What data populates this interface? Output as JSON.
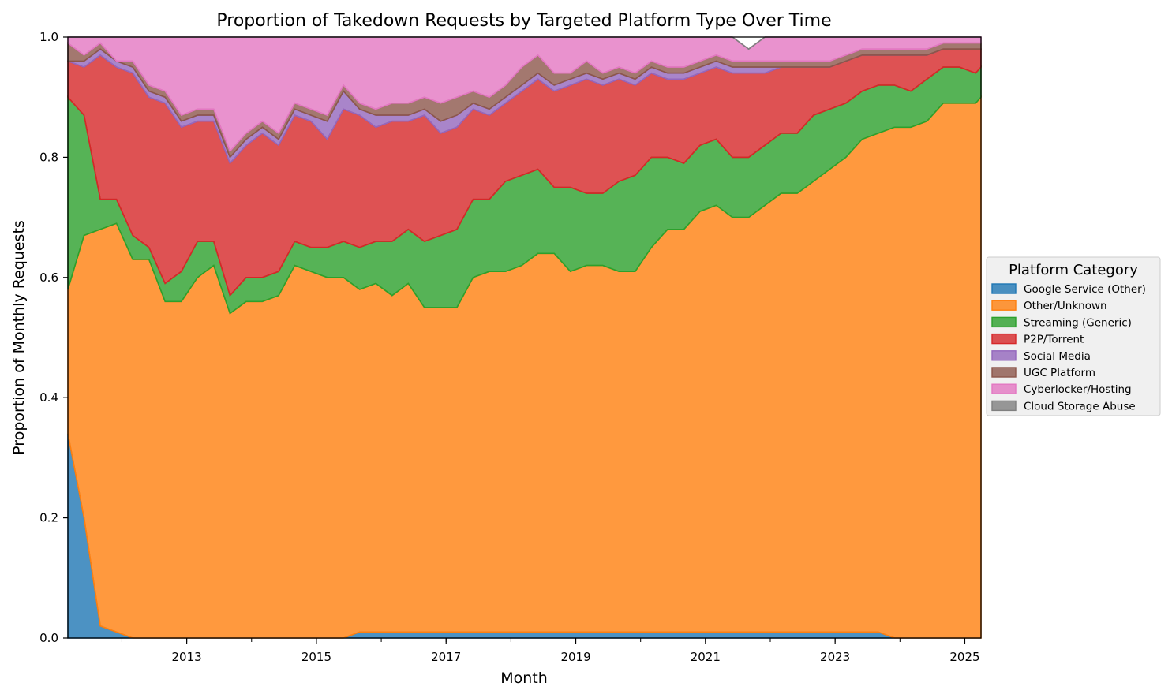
{
  "chart_data": {
    "type": "area",
    "stacked": true,
    "normalized": true,
    "title": "Proportion of Takedown Requests by Targeted Platform Type Over Time",
    "xlabel": "Month",
    "ylabel": "Proportion of Monthly Requests",
    "xlim": [
      "2011-03",
      "2025-04"
    ],
    "ylim": [
      0,
      1
    ],
    "x_ticks": [
      "2013",
      "2015",
      "2017",
      "2019",
      "2021",
      "2023",
      "2025"
    ],
    "y_ticks": [
      "0.0",
      "0.2",
      "0.4",
      "0.6",
      "0.8",
      "1.0"
    ],
    "grid": false,
    "legend": {
      "title": "Platform Category",
      "placement": "center-right, outside plot"
    },
    "x": [
      "2011-03",
      "2011-06",
      "2011-09",
      "2011-12",
      "2012-03",
      "2012-06",
      "2012-09",
      "2012-12",
      "2013-03",
      "2013-06",
      "2013-09",
      "2013-12",
      "2014-03",
      "2014-06",
      "2014-09",
      "2014-12",
      "2015-03",
      "2015-06",
      "2015-09",
      "2015-12",
      "2016-03",
      "2016-06",
      "2016-09",
      "2016-12",
      "2017-03",
      "2017-06",
      "2017-09",
      "2017-12",
      "2018-03",
      "2018-06",
      "2018-09",
      "2018-12",
      "2019-03",
      "2019-06",
      "2019-09",
      "2019-12",
      "2020-03",
      "2020-06",
      "2020-09",
      "2020-12",
      "2021-03",
      "2021-06",
      "2021-09",
      "2021-12",
      "2022-03",
      "2022-06",
      "2022-09",
      "2022-12",
      "2023-03",
      "2023-06",
      "2023-09",
      "2023-12",
      "2024-03",
      "2024-06",
      "2024-09",
      "2024-12",
      "2025-03",
      "2025-04"
    ],
    "series": [
      {
        "name": "Google Service (Other)",
        "color": "#1f77b4",
        "values": [
          0.34,
          0.2,
          0.02,
          0.01,
          0.0,
          0.0,
          0.0,
          0.0,
          0.0,
          0.0,
          0.0,
          0.0,
          0.0,
          0.0,
          0.0,
          0.0,
          0.0,
          0.0,
          0.01,
          0.01,
          0.01,
          0.01,
          0.01,
          0.01,
          0.01,
          0.01,
          0.01,
          0.01,
          0.01,
          0.01,
          0.01,
          0.01,
          0.01,
          0.01,
          0.01,
          0.01,
          0.01,
          0.01,
          0.01,
          0.01,
          0.01,
          0.01,
          0.01,
          0.01,
          0.01,
          0.01,
          0.01,
          0.01,
          0.01,
          0.01,
          0.01,
          0.0,
          0.0,
          0.0,
          0.0,
          0.0,
          0.0,
          0.0
        ]
      },
      {
        "name": "Other/Unknown",
        "color": "#ff7f0e",
        "values": [
          0.24,
          0.47,
          0.66,
          0.68,
          0.63,
          0.63,
          0.56,
          0.56,
          0.6,
          0.62,
          0.54,
          0.56,
          0.56,
          0.57,
          0.62,
          0.61,
          0.6,
          0.6,
          0.57,
          0.58,
          0.56,
          0.58,
          0.54,
          0.54,
          0.54,
          0.59,
          0.6,
          0.6,
          0.61,
          0.63,
          0.63,
          0.6,
          0.61,
          0.61,
          0.6,
          0.6,
          0.64,
          0.67,
          0.67,
          0.7,
          0.71,
          0.69,
          0.69,
          0.71,
          0.73,
          0.73,
          0.75,
          0.77,
          0.79,
          0.82,
          0.83,
          0.85,
          0.85,
          0.86,
          0.89,
          0.89,
          0.89,
          0.9
        ]
      },
      {
        "name": "Streaming (Generic)",
        "color": "#2ca02c",
        "values": [
          0.32,
          0.2,
          0.05,
          0.04,
          0.04,
          0.02,
          0.03,
          0.05,
          0.06,
          0.04,
          0.03,
          0.04,
          0.04,
          0.04,
          0.04,
          0.04,
          0.05,
          0.06,
          0.07,
          0.07,
          0.09,
          0.09,
          0.11,
          0.12,
          0.13,
          0.13,
          0.12,
          0.15,
          0.15,
          0.14,
          0.11,
          0.14,
          0.12,
          0.12,
          0.15,
          0.16,
          0.15,
          0.12,
          0.11,
          0.11,
          0.11,
          0.1,
          0.1,
          0.1,
          0.1,
          0.1,
          0.11,
          0.1,
          0.09,
          0.08,
          0.08,
          0.07,
          0.06,
          0.07,
          0.06,
          0.06,
          0.05,
          0.05
        ]
      },
      {
        "name": "P2P/Torrent",
        "color": "#d62728",
        "values": [
          0.06,
          0.08,
          0.24,
          0.22,
          0.27,
          0.25,
          0.3,
          0.24,
          0.2,
          0.2,
          0.22,
          0.22,
          0.24,
          0.21,
          0.21,
          0.21,
          0.18,
          0.22,
          0.22,
          0.19,
          0.2,
          0.18,
          0.21,
          0.17,
          0.17,
          0.15,
          0.14,
          0.13,
          0.14,
          0.15,
          0.16,
          0.17,
          0.19,
          0.18,
          0.17,
          0.15,
          0.14,
          0.13,
          0.14,
          0.12,
          0.12,
          0.14,
          0.14,
          0.12,
          0.11,
          0.11,
          0.08,
          0.07,
          0.07,
          0.06,
          0.05,
          0.05,
          0.06,
          0.04,
          0.03,
          0.03,
          0.04,
          0.03
        ]
      },
      {
        "name": "Social Media",
        "color": "#9467bd",
        "values": [
          0.0,
          0.01,
          0.01,
          0.01,
          0.01,
          0.01,
          0.01,
          0.01,
          0.01,
          0.01,
          0.01,
          0.01,
          0.01,
          0.01,
          0.01,
          0.01,
          0.03,
          0.03,
          0.01,
          0.02,
          0.01,
          0.01,
          0.01,
          0.02,
          0.02,
          0.01,
          0.01,
          0.01,
          0.01,
          0.01,
          0.01,
          0.01,
          0.01,
          0.01,
          0.01,
          0.01,
          0.01,
          0.01,
          0.01,
          0.01,
          0.01,
          0.01,
          0.01,
          0.01,
          0.0,
          0.0,
          0.0,
          0.0,
          0.0,
          0.0,
          0.0,
          0.0,
          0.0,
          0.0,
          0.0,
          0.0,
          0.0,
          0.0
        ]
      },
      {
        "name": "UGC Platform",
        "color": "#8c564b",
        "values": [
          0.03,
          0.01,
          0.01,
          0.0,
          0.01,
          0.01,
          0.01,
          0.01,
          0.01,
          0.01,
          0.01,
          0.01,
          0.01,
          0.01,
          0.01,
          0.01,
          0.01,
          0.01,
          0.01,
          0.01,
          0.02,
          0.02,
          0.02,
          0.03,
          0.03,
          0.02,
          0.02,
          0.02,
          0.03,
          0.03,
          0.02,
          0.01,
          0.02,
          0.01,
          0.01,
          0.01,
          0.01,
          0.01,
          0.01,
          0.01,
          0.01,
          0.01,
          0.01,
          0.01,
          0.01,
          0.01,
          0.01,
          0.01,
          0.01,
          0.01,
          0.01,
          0.01,
          0.01,
          0.01,
          0.01,
          0.01,
          0.01,
          0.01
        ]
      },
      {
        "name": "Cyberlocker/Hosting",
        "color": "#e377c2",
        "values": [
          0.01,
          0.03,
          0.02,
          0.04,
          0.04,
          0.08,
          0.09,
          0.13,
          0.12,
          0.14,
          0.19,
          0.16,
          0.14,
          0.16,
          0.11,
          0.12,
          0.13,
          0.08,
          0.11,
          0.12,
          0.11,
          0.11,
          0.1,
          0.11,
          0.1,
          0.09,
          0.1,
          0.08,
          0.05,
          0.03,
          0.06,
          0.06,
          0.04,
          0.06,
          0.05,
          0.06,
          0.04,
          0.05,
          0.05,
          0.04,
          0.03,
          0.04,
          0.02,
          0.04,
          0.04,
          0.04,
          0.04,
          0.04,
          0.03,
          0.02,
          0.02,
          0.02,
          0.02,
          0.02,
          0.01,
          0.01,
          0.01,
          0.01
        ]
      },
      {
        "name": "Cloud Storage Abuse",
        "color": "#7f7f7f",
        "values": [
          0.0,
          0.0,
          0.0,
          0.0,
          0.0,
          0.0,
          0.0,
          0.0,
          0.0,
          0.0,
          0.0,
          0.0,
          0.0,
          0.0,
          0.0,
          0.0,
          0.0,
          0.0,
          0.0,
          0.0,
          0.0,
          0.0,
          0.0,
          0.0,
          0.0,
          0.0,
          0.0,
          0.0,
          0.0,
          0.0,
          0.0,
          0.0,
          0.0,
          0.0,
          0.0,
          0.0,
          0.0,
          0.0,
          0.0,
          0.0,
          0.0,
          0.0,
          0.0,
          0.0,
          0.0,
          0.0,
          0.0,
          0.0,
          0.0,
          0.0,
          0.0,
          0.0,
          0.0,
          0.0,
          0.0,
          0.0,
          0.0,
          0.0
        ]
      }
    ]
  }
}
